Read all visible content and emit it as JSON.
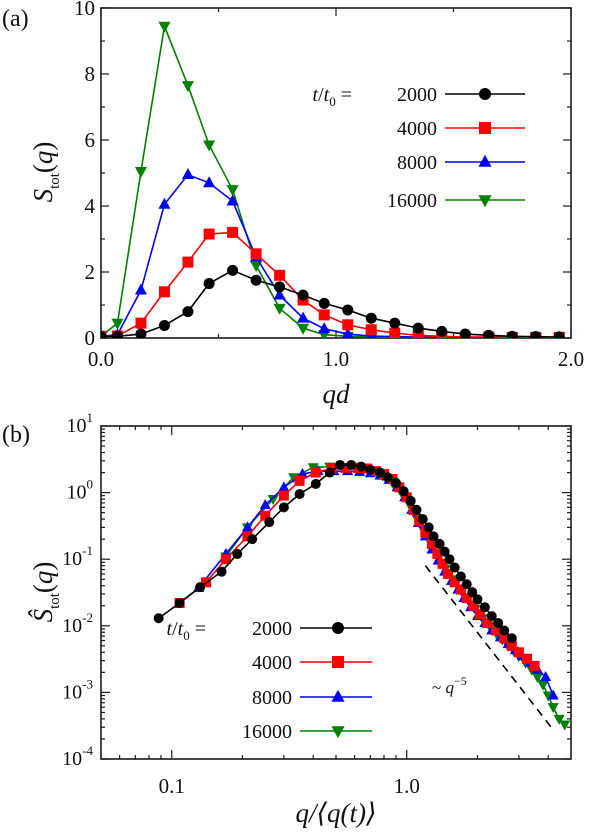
{
  "chart_data": [
    {
      "type": "line",
      "panel_label": "(a)",
      "xlabel": "qd",
      "ylabel": "S_tot(q)",
      "xlim": [
        0.0,
        2.0
      ],
      "ylim": [
        0,
        10
      ],
      "xticks": [
        "0.0",
        "1.0",
        "2.0"
      ],
      "yticks": [
        "0",
        "2",
        "4",
        "6",
        "8",
        "10"
      ],
      "legend_prefix": "t/t0 =",
      "legend_placement": "top-right",
      "x": [
        0.0,
        0.07,
        0.17,
        0.27,
        0.37,
        0.46,
        0.56,
        0.66,
        0.76,
        0.86,
        0.95,
        1.05,
        1.15,
        1.25,
        1.35,
        1.45,
        1.55,
        1.65,
        1.75,
        1.85,
        1.95
      ],
      "series": [
        {
          "name": "2000",
          "color": "#000000",
          "marker": "circle",
          "values": [
            0.05,
            0.05,
            0.12,
            0.38,
            0.8,
            1.65,
            2.05,
            1.75,
            1.55,
            1.3,
            1.05,
            0.85,
            0.6,
            0.45,
            0.3,
            0.2,
            0.12,
            0.08,
            0.05,
            0.04,
            0.03
          ]
        },
        {
          "name": "4000",
          "color": "#ff0000",
          "marker": "square",
          "values": [
            0.05,
            0.06,
            0.45,
            1.4,
            2.3,
            3.15,
            3.2,
            2.55,
            1.9,
            1.15,
            0.7,
            0.4,
            0.25,
            0.15,
            0.08,
            0.05,
            0.03,
            0.03,
            0.02,
            0.02,
            0.02
          ]
        },
        {
          "name": "8000",
          "color": "#0000ff",
          "marker": "triangle-up",
          "values": [
            0.05,
            0.1,
            1.45,
            4.05,
            4.95,
            4.7,
            4.15,
            2.45,
            1.3,
            0.6,
            0.28,
            0.12,
            0.06,
            0.04,
            0.03,
            0.02,
            0.02,
            0.02,
            0.02,
            0.02,
            0.02
          ]
        },
        {
          "name": "16000",
          "color": "#008000",
          "marker": "triangle-down",
          "values": [
            0.05,
            0.45,
            5.05,
            9.45,
            7.65,
            5.85,
            4.5,
            2.2,
            0.9,
            0.3,
            0.1,
            0.05,
            0.03,
            0.02,
            0.02,
            0.02,
            0.02,
            0.02,
            0.02,
            0.02,
            0.02
          ]
        }
      ]
    },
    {
      "type": "line",
      "scale": "log-log",
      "panel_label": "(b)",
      "xlabel": "q/⟨q(t)⟩",
      "ylabel": "Ŝ_tot(q)",
      "xlim": [
        0.05,
        5.0
      ],
      "ylim": [
        0.0001,
        10
      ],
      "xticks": [
        "0.1",
        "1.0"
      ],
      "yticks": [
        "10^-4",
        "10^-3",
        "10^-2",
        "10^-1",
        "10^0",
        "10^1"
      ],
      "legend_prefix": "t/t0 =",
      "legend_placement": "bottom-left",
      "annotation": "~ q^-5",
      "guide_line": {
        "x": [
          1.2,
          4.25
        ],
        "y": [
          0.08,
          0.00026
        ],
        "style": "dashed"
      },
      "series": [
        {
          "name": "2000",
          "color": "#000000",
          "marker": "circle",
          "x": [
            0.088,
            0.108,
            0.132,
            0.163,
            0.19,
            0.22,
            0.26,
            0.3,
            0.35,
            0.41,
            0.47,
            0.52,
            0.58,
            0.64,
            0.7,
            0.77,
            0.83,
            0.9,
            0.97,
            1.04,
            1.1,
            1.17,
            1.24,
            1.3,
            1.38,
            1.45,
            1.52,
            1.6,
            1.7,
            1.8,
            1.9,
            2.0,
            2.15,
            2.3,
            2.45,
            2.6,
            2.8
          ],
          "values": [
            0.013,
            0.022,
            0.038,
            0.065,
            0.12,
            0.2,
            0.36,
            0.6,
            0.95,
            1.35,
            2.0,
            2.6,
            2.6,
            2.45,
            2.2,
            2.0,
            1.7,
            1.4,
            1.05,
            0.75,
            0.55,
            0.4,
            0.3,
            0.22,
            0.17,
            0.13,
            0.1,
            0.075,
            0.055,
            0.042,
            0.032,
            0.025,
            0.019,
            0.014,
            0.011,
            0.0085,
            0.0065
          ]
        },
        {
          "name": "4000",
          "color": "#ff0000",
          "marker": "square",
          "x": [
            0.108,
            0.14,
            0.17,
            0.21,
            0.25,
            0.3,
            0.35,
            0.41,
            0.48,
            0.55,
            0.62,
            0.68,
            0.74,
            0.8,
            0.87,
            0.93,
            1.0,
            1.07,
            1.13,
            1.2,
            1.28,
            1.35,
            1.42,
            1.5,
            1.6,
            1.7,
            1.8,
            1.92,
            2.05,
            2.2,
            2.4,
            2.6,
            2.8,
            3.0,
            3.25,
            3.5
          ],
          "values": [
            0.022,
            0.045,
            0.1,
            0.22,
            0.45,
            0.9,
            1.5,
            2.0,
            2.3,
            2.35,
            2.35,
            2.3,
            2.1,
            1.9,
            1.6,
            1.2,
            0.85,
            0.55,
            0.37,
            0.25,
            0.17,
            0.12,
            0.085,
            0.06,
            0.045,
            0.035,
            0.026,
            0.02,
            0.015,
            0.011,
            0.0085,
            0.0065,
            0.005,
            0.004,
            0.0032,
            0.0025
          ]
        },
        {
          "name": "8000",
          "color": "#0000ff",
          "marker": "triangle-up",
          "x": [
            0.13,
            0.17,
            0.21,
            0.25,
            0.3,
            0.36,
            0.42,
            0.49,
            0.56,
            0.63,
            0.7,
            0.77,
            0.84,
            0.91,
            0.98,
            1.05,
            1.12,
            1.2,
            1.28,
            1.36,
            1.45,
            1.55,
            1.65,
            1.75,
            1.87,
            2.0,
            2.15,
            2.3,
            2.5,
            2.7,
            2.9,
            3.1,
            3.35,
            3.6,
            3.9,
            4.2
          ],
          "values": [
            0.037,
            0.12,
            0.3,
            0.65,
            1.2,
            1.9,
            2.1,
            2.1,
            2.1,
            2.05,
            1.95,
            1.8,
            1.55,
            1.2,
            0.85,
            0.55,
            0.35,
            0.22,
            0.14,
            0.095,
            0.065,
            0.047,
            0.035,
            0.026,
            0.019,
            0.014,
            0.011,
            0.0085,
            0.0067,
            0.0053,
            0.0043,
            0.0035,
            0.0028,
            0.0022,
            0.0017,
            0.0009
          ]
        },
        {
          "name": "16000",
          "color": "#008000",
          "marker": "triangle-down",
          "x": [
            0.17,
            0.21,
            0.27,
            0.33,
            0.4,
            0.47,
            0.55,
            0.63,
            0.71,
            0.79,
            0.87,
            0.95,
            1.03,
            1.1,
            1.18,
            1.27,
            1.36,
            1.46,
            1.57,
            1.69,
            1.82,
            1.96,
            2.1,
            2.25,
            2.4,
            2.55,
            2.7,
            2.85,
            3.0,
            3.2,
            3.4,
            3.6,
            3.8,
            4.0,
            4.2,
            4.45,
            4.7
          ],
          "values": [
            0.11,
            0.3,
            0.8,
            1.7,
            2.4,
            2.45,
            2.4,
            2.3,
            2.1,
            1.8,
            1.4,
            1.0,
            0.65,
            0.42,
            0.27,
            0.17,
            0.11,
            0.072,
            0.05,
            0.035,
            0.025,
            0.018,
            0.013,
            0.01,
            0.0078,
            0.0062,
            0.005,
            0.0042,
            0.0035,
            0.0028,
            0.0022,
            0.0017,
            0.0013,
            0.0009,
            0.0006,
            0.0004,
            0.00033
          ]
        }
      ]
    }
  ]
}
